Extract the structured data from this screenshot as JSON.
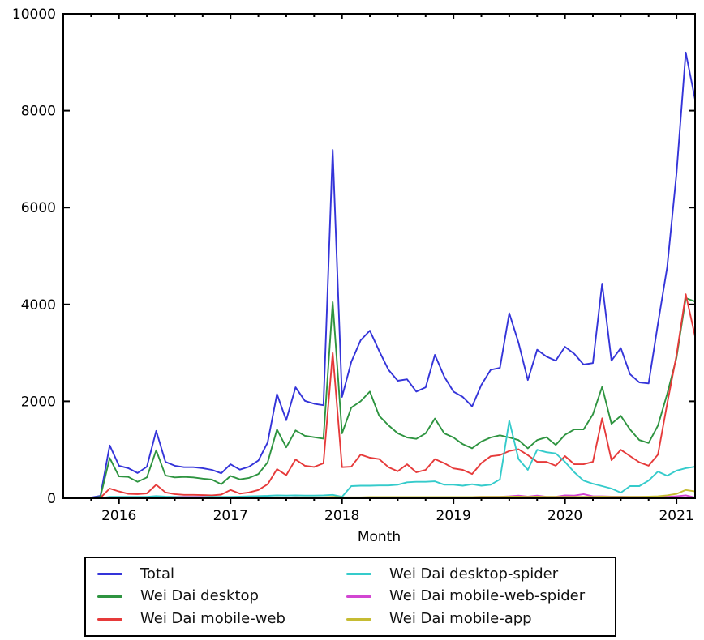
{
  "figure": {
    "background": "#ffffff",
    "axis_color": "#000000",
    "text_color": "#000000"
  },
  "chart_data": {
    "type": "line",
    "title": "",
    "xlabel": "Month",
    "ylabel": "",
    "ylim": [
      0,
      10000
    ],
    "y_ticks": [
      0,
      2000,
      4000,
      6000,
      8000,
      10000
    ],
    "x_tick_years": [
      "2016",
      "2017",
      "2018",
      "2019",
      "2020",
      "2021"
    ],
    "grid": false,
    "legend_position": "bottom",
    "x": [
      "2015-07",
      "2015-08",
      "2015-09",
      "2015-10",
      "2015-11",
      "2015-12",
      "2016-01",
      "2016-02",
      "2016-03",
      "2016-04",
      "2016-05",
      "2016-06",
      "2016-07",
      "2016-08",
      "2016-09",
      "2016-10",
      "2016-11",
      "2016-12",
      "2017-01",
      "2017-02",
      "2017-03",
      "2017-04",
      "2017-05",
      "2017-06",
      "2017-07",
      "2017-08",
      "2017-09",
      "2017-10",
      "2017-11",
      "2017-12",
      "2018-01",
      "2018-02",
      "2018-03",
      "2018-04",
      "2018-05",
      "2018-06",
      "2018-07",
      "2018-08",
      "2018-09",
      "2018-10",
      "2018-11",
      "2018-12",
      "2019-01",
      "2019-02",
      "2019-03",
      "2019-04",
      "2019-05",
      "2019-06",
      "2019-07",
      "2019-08",
      "2019-09",
      "2019-10",
      "2019-11",
      "2019-12",
      "2020-01",
      "2020-02",
      "2020-03",
      "2020-04",
      "2020-05",
      "2020-06",
      "2020-07",
      "2020-08",
      "2020-09",
      "2020-10",
      "2020-11",
      "2020-12",
      "2021-01",
      "2021-02",
      "2021-03"
    ],
    "series": [
      {
        "name": "Total",
        "color": "#3434d9",
        "values": [
          2,
          3,
          8,
          15,
          50,
          1090,
          670,
          620,
          520,
          650,
          1390,
          750,
          670,
          640,
          640,
          620,
          585,
          515,
          700,
          590,
          650,
          780,
          1150,
          2150,
          1610,
          2290,
          2010,
          1950,
          1920,
          7190,
          2090,
          2815,
          3260,
          3460,
          3040,
          2650,
          2425,
          2455,
          2200,
          2290,
          2960,
          2510,
          2200,
          2090,
          1895,
          2340,
          2650,
          2690,
          3820,
          3210,
          2440,
          3065,
          2925,
          2840,
          3125,
          2980,
          2760,
          2790,
          4430,
          2840,
          3100,
          2560,
          2390,
          2370,
          3600,
          4770,
          6700,
          9200,
          8230
        ]
      },
      {
        "name": "Wei Dai desktop",
        "color": "#2e9440",
        "values": [
          1,
          2,
          5,
          10,
          30,
          830,
          450,
          440,
          340,
          430,
          990,
          470,
          430,
          440,
          430,
          405,
          385,
          290,
          460,
          390,
          420,
          500,
          740,
          1420,
          1050,
          1400,
          1290,
          1260,
          1230,
          4050,
          1340,
          1870,
          2000,
          2200,
          1700,
          1505,
          1340,
          1255,
          1225,
          1340,
          1645,
          1340,
          1255,
          1115,
          1030,
          1170,
          1255,
          1300,
          1255,
          1200,
          1030,
          1200,
          1260,
          1100,
          1310,
          1420,
          1420,
          1730,
          2300,
          1535,
          1700,
          1420,
          1200,
          1140,
          1500,
          2150,
          2900,
          4130,
          4060
        ]
      },
      {
        "name": "Wei Dai mobile-web",
        "color": "#e63a3a",
        "values": [
          0,
          1,
          2,
          5,
          10,
          200,
          140,
          90,
          85,
          100,
          280,
          120,
          85,
          70,
          70,
          65,
          60,
          75,
          170,
          95,
          120,
          170,
          290,
          600,
          475,
          800,
          670,
          645,
          720,
          3000,
          640,
          650,
          900,
          836,
          808,
          640,
          557,
          700,
          535,
          585,
          808,
          724,
          615,
          585,
          500,
          725,
          866,
          890,
          975,
          1010,
          890,
          750,
          750,
          670,
          870,
          700,
          700,
          750,
          1650,
          785,
          1000,
          870,
          740,
          670,
          900,
          1950,
          2950,
          4210,
          3340
        ]
      },
      {
        "name": "Wei Dai desktop-spider",
        "color": "#35cbcb",
        "values": [
          0,
          0,
          1,
          2,
          5,
          30,
          30,
          30,
          30,
          30,
          45,
          35,
          30,
          30,
          30,
          30,
          30,
          30,
          30,
          35,
          40,
          45,
          50,
          60,
          55,
          60,
          55,
          55,
          60,
          70,
          30,
          250,
          260,
          260,
          265,
          265,
          280,
          330,
          340,
          340,
          350,
          280,
          280,
          260,
          290,
          260,
          280,
          390,
          1600,
          810,
          585,
          1000,
          950,
          925,
          750,
          535,
          365,
          300,
          250,
          200,
          115,
          250,
          250,
          365,
          550,
          465,
          570,
          620,
          650
        ]
      },
      {
        "name": "Wei Dai mobile-web-spider",
        "color": "#d246d2",
        "values": [
          0,
          0,
          0,
          0,
          2,
          5,
          5,
          5,
          5,
          5,
          10,
          10,
          20,
          25,
          25,
          25,
          15,
          10,
          10,
          10,
          15,
          15,
          15,
          15,
          15,
          20,
          15,
          15,
          15,
          20,
          10,
          15,
          15,
          20,
          20,
          20,
          20,
          25,
          25,
          25,
          25,
          25,
          25,
          25,
          25,
          30,
          30,
          30,
          40,
          55,
          35,
          55,
          30,
          30,
          60,
          55,
          85,
          40,
          40,
          35,
          35,
          30,
          30,
          30,
          30,
          30,
          40,
          60,
          15
        ]
      },
      {
        "name": "Wei Dai mobile-app",
        "color": "#c6bc33",
        "values": [
          0,
          0,
          0,
          1,
          2,
          10,
          10,
          10,
          10,
          10,
          15,
          15,
          10,
          10,
          10,
          10,
          10,
          10,
          10,
          10,
          10,
          15,
          15,
          20,
          15,
          20,
          20,
          20,
          20,
          30,
          20,
          20,
          20,
          25,
          25,
          25,
          25,
          25,
          25,
          25,
          25,
          25,
          25,
          25,
          25,
          30,
          30,
          30,
          35,
          35,
          30,
          35,
          30,
          30,
          30,
          30,
          30,
          30,
          35,
          30,
          30,
          30,
          30,
          35,
          40,
          60,
          90,
          170,
          140
        ]
      }
    ]
  }
}
